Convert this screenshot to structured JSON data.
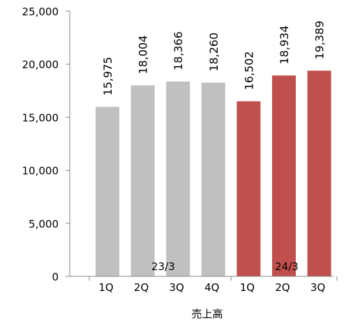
{
  "chart_data": {
    "type": "bar",
    "title": "",
    "xlabel": "売上高",
    "ylabel": "",
    "ylim": [
      0,
      25000
    ],
    "yticks": [
      0,
      5000,
      10000,
      15000,
      20000,
      25000
    ],
    "ytick_labels": [
      "0",
      "5,000",
      "10,000",
      "15,000",
      "20,000",
      "25,000"
    ],
    "grid": false,
    "legend": "none",
    "categories": [
      "1Q",
      "2Q",
      "3Q",
      "4Q",
      "1Q",
      "2Q",
      "3Q"
    ],
    "values": [
      15975,
      18004,
      18366,
      18260,
      16502,
      18934,
      19389
    ],
    "data_labels": [
      "15,975",
      "18,004",
      "18,366",
      "18,260",
      "16,502",
      "18,934",
      "19,389"
    ],
    "groups": [
      {
        "label": "23/3",
        "start": 0,
        "end": 3,
        "color": "#c0c0c0"
      },
      {
        "label": "24/3",
        "start": 4,
        "end": 6,
        "color": "#c0504d"
      }
    ]
  }
}
